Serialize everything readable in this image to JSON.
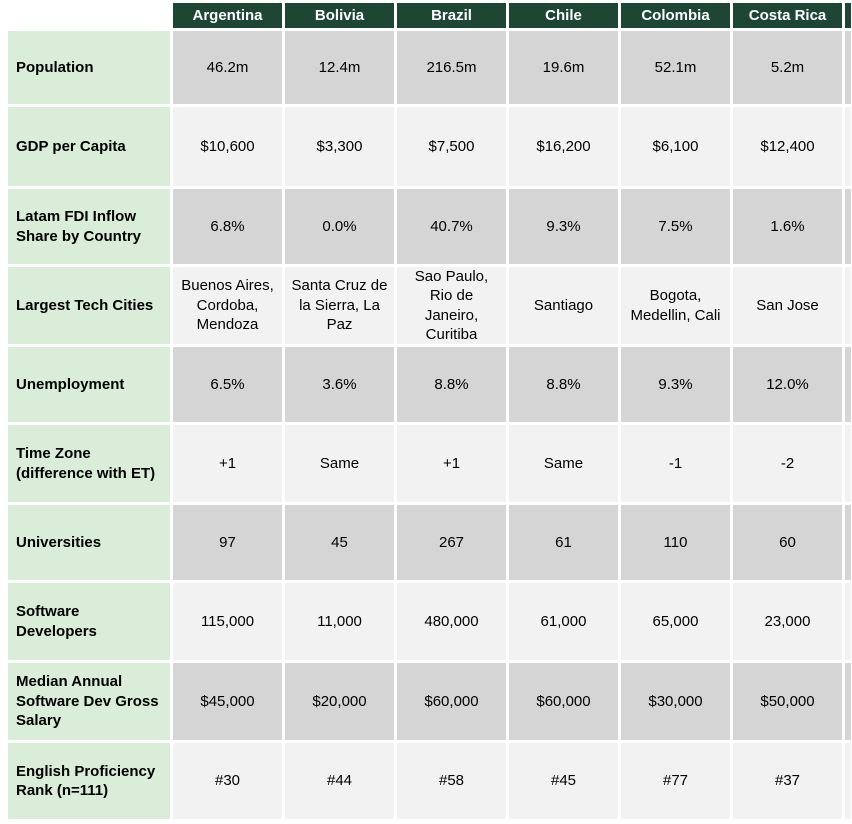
{
  "table": {
    "corner_label": "",
    "columns": [
      "Argentina",
      "Bolivia",
      "Brazil",
      "Chile",
      "Colombia",
      "Costa Rica"
    ],
    "rows": [
      {
        "label": "Population",
        "values": [
          "46.2m",
          "12.4m",
          "216.5m",
          "19.6m",
          "52.1m",
          "5.2m"
        ]
      },
      {
        "label": "GDP per Capita",
        "values": [
          "$10,600",
          "$3,300",
          "$7,500",
          "$16,200",
          "$6,100",
          "$12,400"
        ]
      },
      {
        "label": "Latam FDI Inflow Share by Country",
        "values": [
          "6.8%",
          "0.0%",
          "40.7%",
          "9.3%",
          "7.5%",
          "1.6%"
        ]
      },
      {
        "label": "Largest Tech Cities",
        "values": [
          "Buenos Aires, Cordoba, Mendoza",
          "Santa Cruz de la Sierra, La Paz",
          "Sao Paulo, Rio de Janeiro, Curitiba",
          "Santiago",
          "Bogota, Medellin, Cali",
          "San Jose"
        ]
      },
      {
        "label": "Unemployment",
        "values": [
          "6.5%",
          "3.6%",
          "8.8%",
          "8.8%",
          "9.3%",
          "12.0%"
        ]
      },
      {
        "label": "Time Zone (difference with ET)",
        "values": [
          "+1",
          "Same",
          "+1",
          "Same",
          "-1",
          "-2"
        ]
      },
      {
        "label": "Universities",
        "values": [
          "97",
          "45",
          "267",
          "61",
          "110",
          "60"
        ]
      },
      {
        "label": "Software Developers",
        "values": [
          "115,000",
          "11,000",
          "480,000",
          "61,000",
          "65,000",
          "23,000"
        ]
      },
      {
        "label": "Median Annual Software Dev Gross Salary",
        "values": [
          "$45,000",
          "$20,000",
          "$60,000",
          "$60,000",
          "$30,000",
          "$50,000"
        ]
      },
      {
        "label": "English Proficiency Rank (n=111)",
        "values": [
          "#30",
          "#44",
          "#58",
          "#45",
          "#77",
          "#37"
        ]
      }
    ],
    "colors": {
      "header_bg": "#1d4635",
      "header_text": "#ffffff",
      "label_bg": "#d9edd9",
      "cell_dark_bg": "#d5d5d5",
      "cell_light_bg": "#f2f2f2",
      "text": "#000000"
    }
  }
}
